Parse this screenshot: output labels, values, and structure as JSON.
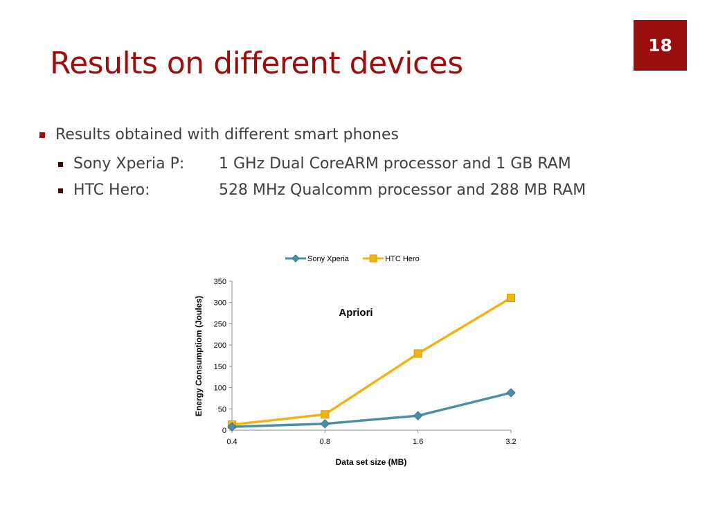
{
  "slide": {
    "number": "18",
    "title": "Results on different devices"
  },
  "bullets": {
    "main": "Results obtained with different smart phones",
    "devices": [
      {
        "name": "Sony Xperia P:",
        "spec": "1 GHz Dual CoreARM processor and 1 GB RAM"
      },
      {
        "name": "HTC Hero:",
        "spec": "528 MHz Qualcomm processor and 288 MB RAM"
      }
    ]
  },
  "colors": {
    "accent": "#9b0e0e",
    "sony_series": "#4a90a4",
    "htc_series": "#f0b419"
  },
  "chart_data": {
    "type": "line",
    "title": "Apriori",
    "xlabel": "Data set size (MB)",
    "ylabel": "Energy Consumptiom (Joules)",
    "categories": [
      "0.4",
      "0.8",
      "1.6",
      "3.2"
    ],
    "ylim": [
      0,
      350
    ],
    "yticks": [
      0,
      50,
      100,
      150,
      200,
      250,
      300,
      350
    ],
    "legend_position": "top",
    "grid": false,
    "series": [
      {
        "name": "Sony Xperia",
        "values": [
          8,
          15,
          34,
          88
        ],
        "marker": "diamond",
        "color": "#4a90a4"
      },
      {
        "name": "HTC Hero",
        "values": [
          13,
          37,
          180,
          311
        ],
        "marker": "square",
        "color": "#f0b419"
      }
    ]
  }
}
